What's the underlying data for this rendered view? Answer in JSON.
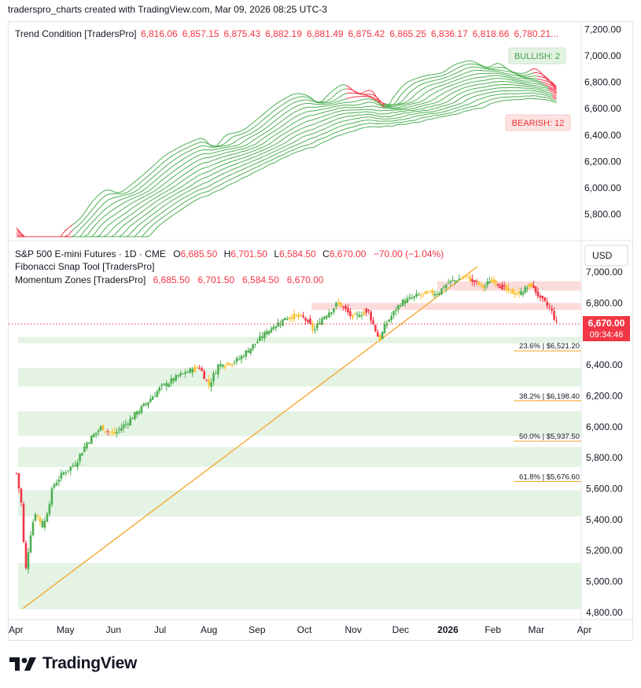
{
  "header": {
    "caption": "traderspro_charts created with TradingView.com, Mar 09, 2026 08:25 UTC-3"
  },
  "footer": {
    "brand": "TradingView"
  },
  "colors": {
    "bull": "#4caf50",
    "bear": "#f23645",
    "neutral": "#fbc02d",
    "fib_zone": "#e4f3e4",
    "resist_zone": "#fbdcdc",
    "trendline": "#f7a325",
    "ribbon_green": "#4caf50",
    "ribbon_red": "#f23645"
  },
  "top_panel": {
    "legend": {
      "title": "Trend Condition [TradersPro]",
      "values": [
        "6,816.06",
        "6,857.15",
        "6,875.43",
        "6,882.19",
        "6,881.49",
        "6,875.42",
        "6,865.25",
        "6,836.17",
        "6,818.66",
        "6,780.21..."
      ]
    },
    "y_ticks": [
      "7,200.00",
      "7,000.00",
      "6,800.00",
      "6,600.00",
      "6,400.00",
      "6,200.00",
      "6,000.00",
      "5,800.00"
    ],
    "badges": {
      "bullish": "BULLISH: 2",
      "bearish": "BEARISH: 12"
    }
  },
  "main_panel": {
    "legend": {
      "symbol": "S&P 500 E-mini Futures · 1D · CME",
      "o_label": "O",
      "o": "6,685.50",
      "h_label": "H",
      "h": "6,701.50",
      "l_label": "L",
      "l": "6,584.50",
      "c_label": "C",
      "c": "6,670.00",
      "change": "−70.00 (−1.04%)",
      "study1": "Fibonacci Snap Tool [TradersPro]",
      "study2_name": "Momentum Zones [TradersPro]",
      "study2_values": "6,685.50   6,701.50   6,584.50   6,670.00"
    },
    "currency": "USD",
    "y_ticks": [
      "7,000.00",
      "6,800.00",
      "6,400.00",
      "6,200.00",
      "6,000.00",
      "5,800.00",
      "5,600.00",
      "5,400.00",
      "5,200.00",
      "5,000.00",
      "4,800.00"
    ],
    "price_tag": "6,670.00",
    "countdown": "09:34:46",
    "fib_labels": [
      "23.6% | $6,521.20",
      "38.2% | $6,198.40",
      "50.0% | $5,937.50",
      "61.8% | $5,676.60"
    ]
  },
  "x_axis": [
    "Apr",
    "May",
    "Jun",
    "Jul",
    "Aug",
    "Sep",
    "Oct",
    "Nov",
    "Dec",
    "2026",
    "Feb",
    "Mar",
    "Apr"
  ],
  "chart_data": {
    "type": "line",
    "title": "S&P 500 E-mini Futures · 1D · CME",
    "x": [
      "Apr",
      "May",
      "Jun",
      "Jul",
      "Aug",
      "Sep",
      "Oct",
      "Nov",
      "Dec",
      "2026",
      "Feb",
      "Mar",
      "Apr"
    ],
    "series": [
      {
        "name": "S&P 500 E-mini Futures",
        "values": [
          5700,
          5600,
          6000,
          6250,
          6400,
          6500,
          6700,
          6850,
          6870,
          6950,
          6900,
          6840,
          6670
        ]
      }
    ],
    "ylim": [
      4800,
      7000
    ],
    "fib_levels": [
      6521.2,
      6198.4,
      5937.5,
      5676.6
    ]
  }
}
